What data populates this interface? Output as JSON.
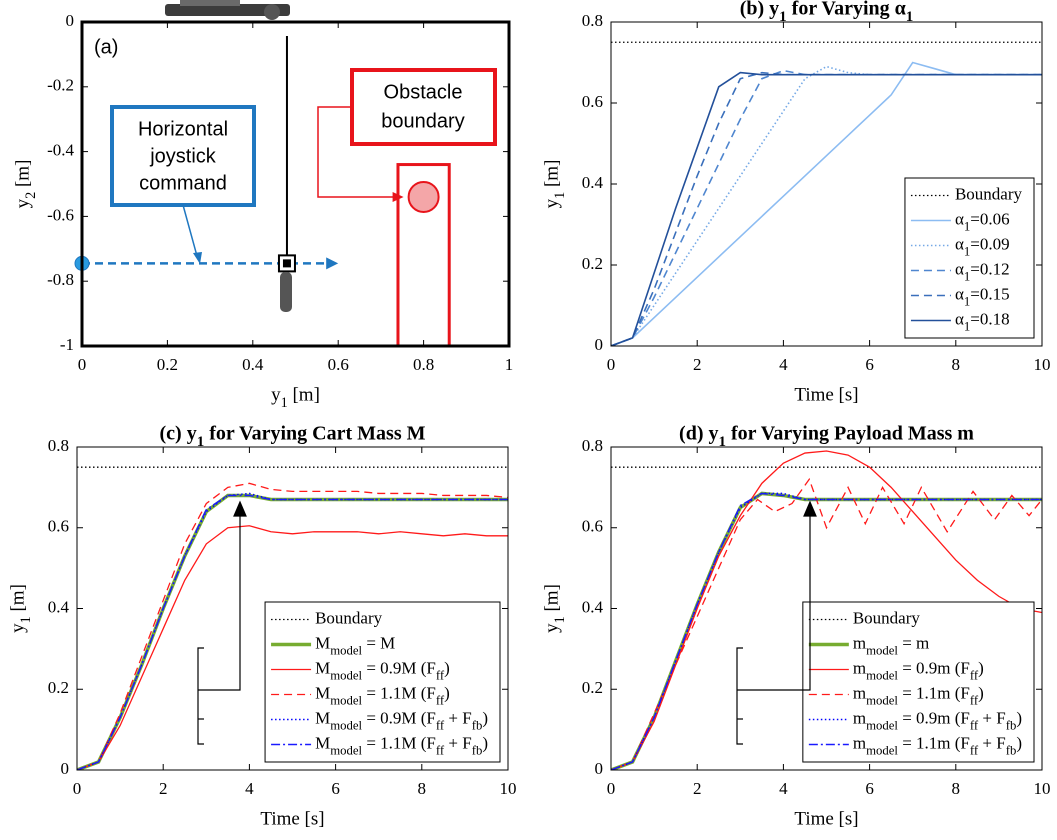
{
  "chart_data": [
    {
      "type": "schematic",
      "panel_label": "(a)",
      "xlabel": "y_{1} [m]",
      "ylabel": "y_{2} [m]",
      "xlim": [
        0,
        1
      ],
      "ylim": [
        -1,
        0
      ],
      "xticks": [
        0,
        0.2,
        0.4,
        0.6,
        0.8,
        1
      ],
      "yticks": [
        0,
        -0.2,
        -0.4,
        -0.6,
        -0.8,
        -1
      ],
      "grid": false,
      "annotations": [
        {
          "text": [
            "Horizontal",
            "joystick",
            "command"
          ],
          "color": "#1f77c0"
        },
        {
          "text": [
            "Obstacle",
            "boundary"
          ],
          "color": "#e8141b"
        }
      ],
      "command": {
        "x": [
          0,
          0.6
        ],
        "y": [
          -0.745,
          -0.745
        ],
        "color": "#1f77c0"
      },
      "cable": {
        "x": 0.48,
        "y": [
          0,
          -0.745
        ]
      },
      "obstacle": {
        "x": [
          0.74,
          0.86
        ],
        "y": [
          -1,
          -0.44
        ],
        "color": "#e8141b"
      },
      "payload": {
        "x": 0.8,
        "y": -0.54
      }
    },
    {
      "type": "line",
      "title": "(b) y_{1} for Varying α_{1}",
      "xlabel": "Time [s]",
      "ylabel": "y_{1} [m]",
      "xlim": [
        0,
        10
      ],
      "ylim": [
        0,
        0.8
      ],
      "xticks": [
        0,
        2,
        4,
        6,
        8,
        10
      ],
      "yticks": [
        0,
        0.2,
        0.4,
        0.6,
        0.8
      ],
      "grid": false,
      "legend": "lower right",
      "x": [
        0,
        0.5,
        1,
        1.5,
        2,
        2.5,
        3,
        3.5,
        4,
        4.5,
        5,
        5.5,
        6,
        6.5,
        7,
        7.5,
        8,
        8.5,
        9,
        9.5,
        10
      ],
      "series": [
        {
          "name": "Boundary",
          "color": "#000000",
          "dash": "dotted",
          "width": 1.3,
          "x": [
            0,
            10
          ],
          "values": [
            0.75,
            0.75
          ]
        },
        {
          "name": "α_{1}=0.06",
          "color": "#8cbcf2",
          "dash": "solid",
          "width": 1.6,
          "values": [
            0,
            0.02,
            0.07,
            0.12,
            0.17,
            0.22,
            0.27,
            0.32,
            0.37,
            0.42,
            0.47,
            0.52,
            0.57,
            0.62,
            0.7,
            0.685,
            0.67,
            0.67,
            0.67,
            0.67,
            0.67
          ]
        },
        {
          "name": "α_{1}=0.09",
          "color": "#74a8e6",
          "dash": "dotted",
          "width": 1.6,
          "values": [
            0,
            0.02,
            0.1,
            0.18,
            0.26,
            0.34,
            0.42,
            0.5,
            0.58,
            0.66,
            0.69,
            0.675,
            0.67,
            0.67,
            0.67,
            0.67,
            0.67,
            0.67,
            0.67,
            0.67,
            0.67
          ]
        },
        {
          "name": "α_{1}=0.12",
          "color": "#4f86cf",
          "dash": "dashed",
          "width": 1.6,
          "values": [
            0,
            0.02,
            0.12,
            0.23,
            0.34,
            0.45,
            0.56,
            0.66,
            0.68,
            0.67,
            0.67,
            0.67,
            0.67,
            0.67,
            0.67,
            0.67,
            0.67,
            0.67,
            0.67,
            0.67,
            0.67
          ]
        },
        {
          "name": "α_{1}=0.15",
          "color": "#3a6fbb",
          "dash": "dashed",
          "width": 1.6,
          "values": [
            0,
            0.02,
            0.14,
            0.28,
            0.42,
            0.55,
            0.66,
            0.675,
            0.67,
            0.67,
            0.67,
            0.67,
            0.67,
            0.67,
            0.67,
            0.67,
            0.67,
            0.67,
            0.67,
            0.67,
            0.67
          ]
        },
        {
          "name": "α_{1}=0.18",
          "color": "#23509a",
          "dash": "solid",
          "width": 1.6,
          "values": [
            0,
            0.02,
            0.18,
            0.34,
            0.49,
            0.64,
            0.675,
            0.67,
            0.67,
            0.67,
            0.67,
            0.67,
            0.67,
            0.67,
            0.67,
            0.67,
            0.67,
            0.67,
            0.67,
            0.67,
            0.67
          ]
        }
      ]
    },
    {
      "type": "line",
      "title": "(c) y_{1} for Varying Cart Mass M",
      "xlabel": "Time [s]",
      "ylabel": "y_{1} [m]",
      "xlim": [
        0,
        10
      ],
      "ylim": [
        0,
        0.8
      ],
      "xticks": [
        0,
        2,
        4,
        6,
        8,
        10
      ],
      "yticks": [
        0,
        0.2,
        0.4,
        0.6,
        0.8
      ],
      "grid": false,
      "legend": "lower right",
      "x": [
        0,
        0.5,
        1,
        1.5,
        2,
        2.5,
        3,
        3.5,
        4,
        4.5,
        5,
        5.5,
        6,
        6.5,
        7,
        7.5,
        8,
        8.5,
        9,
        9.5,
        10
      ],
      "series": [
        {
          "name": "Boundary",
          "color": "#000000",
          "dash": "dotted",
          "width": 1.3,
          "x": [
            0,
            10
          ],
          "values": [
            0.75,
            0.75
          ]
        },
        {
          "name": "M_{model} = M",
          "color": "#77ac30",
          "dash": "solid",
          "width": 3.5,
          "values": [
            0,
            0.02,
            0.13,
            0.26,
            0.4,
            0.53,
            0.64,
            0.68,
            0.68,
            0.67,
            0.67,
            0.67,
            0.67,
            0.67,
            0.67,
            0.67,
            0.67,
            0.67,
            0.67,
            0.67,
            0.67
          ]
        },
        {
          "name": "M_{model} = 0.9M (F_{ff})",
          "color": "#ff1a1a",
          "dash": "solid",
          "width": 1.3,
          "values": [
            0,
            0.02,
            0.11,
            0.23,
            0.35,
            0.47,
            0.56,
            0.6,
            0.605,
            0.59,
            0.585,
            0.59,
            0.59,
            0.59,
            0.585,
            0.59,
            0.585,
            0.58,
            0.585,
            0.58,
            0.58
          ]
        },
        {
          "name": "M_{model} = 1.1M (F_{ff})",
          "color": "#ff1a1a",
          "dash": "dashed",
          "width": 1.3,
          "values": [
            0,
            0.02,
            0.14,
            0.28,
            0.42,
            0.56,
            0.66,
            0.7,
            0.71,
            0.695,
            0.69,
            0.69,
            0.69,
            0.69,
            0.685,
            0.685,
            0.685,
            0.68,
            0.68,
            0.68,
            0.675
          ]
        },
        {
          "name": "M_{model} = 0.9M (F_{ff} + F_{fb})",
          "color": "#0000ff",
          "dash": "dotted",
          "width": 1.5,
          "values": [
            0,
            0.02,
            0.13,
            0.26,
            0.4,
            0.53,
            0.64,
            0.68,
            0.685,
            0.67,
            0.67,
            0.67,
            0.67,
            0.67,
            0.67,
            0.67,
            0.67,
            0.67,
            0.67,
            0.67,
            0.67
          ]
        },
        {
          "name": "M_{model} = 1.1M (F_{ff} + F_{fb})",
          "color": "#1a1aff",
          "dash": "dashdot",
          "width": 1.5,
          "values": [
            0,
            0.02,
            0.13,
            0.26,
            0.4,
            0.53,
            0.645,
            0.68,
            0.68,
            0.67,
            0.67,
            0.67,
            0.67,
            0.67,
            0.67,
            0.67,
            0.67,
            0.67,
            0.67,
            0.67,
            0.67
          ]
        }
      ]
    },
    {
      "type": "line",
      "title": "(d) y_{1} for Varying Payload Mass m",
      "xlabel": "Time [s]",
      "ylabel": "y_{1} [m]",
      "xlim": [
        0,
        10
      ],
      "ylim": [
        0,
        0.8
      ],
      "xticks": [
        0,
        2,
        4,
        6,
        8,
        10
      ],
      "yticks": [
        0,
        0.2,
        0.4,
        0.6,
        0.8
      ],
      "grid": false,
      "legend": "lower right",
      "x": [
        0,
        0.5,
        1,
        1.5,
        2,
        2.5,
        3,
        3.5,
        4,
        4.5,
        5,
        5.5,
        6,
        6.5,
        7,
        7.5,
        8,
        8.5,
        9,
        9.5,
        10
      ],
      "series": [
        {
          "name": "Boundary",
          "color": "#000000",
          "dash": "dotted",
          "width": 1.3,
          "x": [
            0,
            10
          ],
          "values": [
            0.75,
            0.75
          ]
        },
        {
          "name": "m_{model} = m",
          "color": "#77ac30",
          "dash": "solid",
          "width": 3.5,
          "values": [
            0,
            0.02,
            0.13,
            0.27,
            0.41,
            0.54,
            0.65,
            0.685,
            0.68,
            0.67,
            0.67,
            0.67,
            0.67,
            0.67,
            0.67,
            0.67,
            0.67,
            0.67,
            0.67,
            0.67,
            0.67
          ]
        },
        {
          "name": "m_{model} = 0.9m (F_{ff})",
          "color": "#ff1a1a",
          "dash": "solid",
          "width": 1.3,
          "values": [
            0,
            0.02,
            0.12,
            0.26,
            0.4,
            0.53,
            0.63,
            0.71,
            0.76,
            0.785,
            0.79,
            0.78,
            0.75,
            0.7,
            0.64,
            0.58,
            0.52,
            0.47,
            0.43,
            0.4,
            0.39
          ]
        },
        {
          "name": "m_{model} = 1.1m (F_{ff})",
          "color": "#ff1a1a",
          "dash": "dashed",
          "width": 1.3,
          "x": [
            0,
            0.5,
            1,
            1.5,
            2,
            2.5,
            3,
            3.4,
            3.8,
            4.2,
            4.6,
            5.0,
            5.5,
            5.9,
            6.3,
            6.8,
            7.2,
            7.8,
            8.4,
            8.9,
            9.3,
            9.7,
            10
          ],
          "values": [
            0,
            0.02,
            0.14,
            0.26,
            0.38,
            0.5,
            0.62,
            0.67,
            0.64,
            0.66,
            0.72,
            0.6,
            0.7,
            0.61,
            0.7,
            0.61,
            0.7,
            0.59,
            0.69,
            0.62,
            0.68,
            0.63,
            0.67
          ]
        },
        {
          "name": "m_{model} = 0.9m (F_{ff} + F_{fb})",
          "color": "#0000ff",
          "dash": "dotted",
          "width": 1.5,
          "values": [
            0,
            0.02,
            0.13,
            0.27,
            0.41,
            0.54,
            0.65,
            0.685,
            0.685,
            0.67,
            0.67,
            0.67,
            0.67,
            0.67,
            0.67,
            0.67,
            0.67,
            0.67,
            0.67,
            0.67,
            0.67
          ]
        },
        {
          "name": "m_{model} = 1.1m (F_{ff} + F_{fb})",
          "color": "#1a1aff",
          "dash": "dashdot",
          "width": 1.5,
          "values": [
            0,
            0.02,
            0.13,
            0.27,
            0.41,
            0.54,
            0.655,
            0.685,
            0.68,
            0.67,
            0.67,
            0.67,
            0.67,
            0.67,
            0.67,
            0.67,
            0.67,
            0.67,
            0.67,
            0.67,
            0.67
          ]
        }
      ]
    }
  ]
}
